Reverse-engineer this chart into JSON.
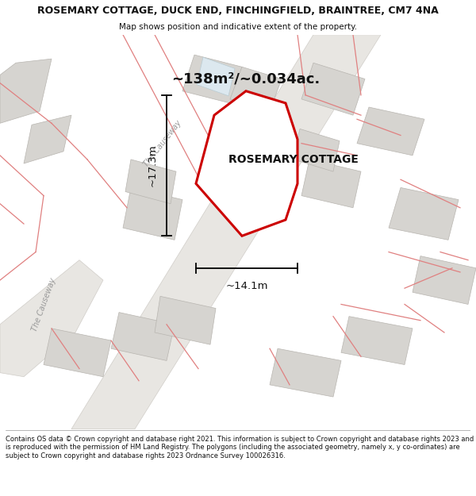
{
  "title": "ROSEMARY COTTAGE, DUCK END, FINCHINGFIELD, BRAINTREE, CM7 4NA",
  "subtitle": "Map shows position and indicative extent of the property.",
  "footer": "Contains OS data © Crown copyright and database right 2021. This information is subject to Crown copyright and database rights 2023 and is reproduced with the permission of HM Land Registry. The polygons (including the associated geometry, namely x, y co-ordinates) are subject to Crown copyright and database rights 2023 Ordnance Survey 100026316.",
  "area_label": "~138m²/~0.034ac.",
  "property_label": "ROSEMARY COTTAGE",
  "width_label": "~14.1m",
  "height_label": "~17.3m",
  "causeway_label1": "The Causeway",
  "causeway_label2": "The Causeway",
  "bg_color": "#ffffff",
  "map_bg": "#f7f6f4",
  "building_fill": "#d6d4d0",
  "building_edge": "#b8b5b0",
  "boundary_color": "#e08080",
  "property_fill": "#ffffff",
  "property_edge": "#cc0000",
  "road_fill": "#e8e6e2",
  "road_edge": "#d0cdc8"
}
